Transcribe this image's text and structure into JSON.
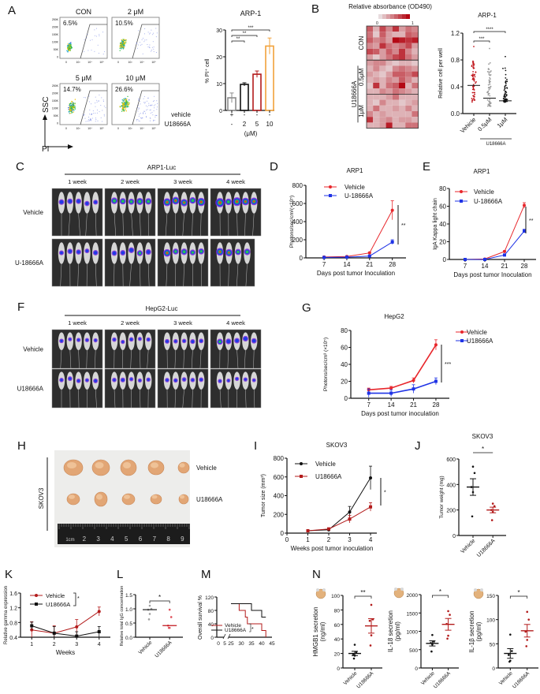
{
  "panels": {
    "A": "A",
    "B": "B",
    "C": "C",
    "D": "D",
    "E": "E",
    "F": "F",
    "G": "G",
    "H": "H",
    "I": "I",
    "J": "J",
    "K": "K",
    "L": "L",
    "M": "M",
    "N": "N"
  },
  "colors": {
    "red": "#e8262b",
    "blue": "#1f33e6",
    "darkred": "#b31b1b",
    "orange": "#f2a23a",
    "grey": "#8c8c8c",
    "black": "#111111"
  },
  "panelA": {
    "flow": {
      "plots": [
        {
          "title": "CON",
          "percent": "6.5%"
        },
        {
          "title": "2 μM",
          "percent": "10.5%"
        },
        {
          "title": "5 μM",
          "percent": "14.7%"
        },
        {
          "title": "10 μM",
          "percent": "26.6%"
        }
      ],
      "y_ticks": [
        "250K",
        "200K",
        "150K",
        "100K",
        "50K",
        "0"
      ],
      "x_ticks": [
        "0",
        "10³",
        "10⁴",
        "10⁵"
      ],
      "y_axis": "SSC",
      "x_axis": "PI"
    },
    "rows": {
      "vehicle_label": "vehicle",
      "drug_label": "U18666A",
      "unit": "(μM)"
    }
  },
  "chart_data": [
    {
      "id": "A-bar",
      "type": "bar",
      "title": "ARP-1",
      "ylabel": "% PI⁺ cell",
      "ylim": [
        0,
        30
      ],
      "yticks": [
        "0",
        "10",
        "20",
        "30"
      ],
      "categories": [
        "vehicle",
        "2",
        "5",
        "10"
      ],
      "vehicle_row": [
        "+",
        "-",
        "-",
        "-"
      ],
      "drug_row": [
        "-",
        "2",
        "5",
        "10"
      ],
      "values": [
        4.7,
        9.7,
        13.5,
        24.0
      ],
      "errors": [
        1.8,
        0.6,
        1.2,
        3.0
      ],
      "significance": [
        {
          "from": 0,
          "to": 1,
          "label": "**"
        },
        {
          "from": 0,
          "to": 2,
          "label": "**"
        },
        {
          "from": 0,
          "to": 3,
          "label": "***"
        }
      ]
    },
    {
      "id": "B-heatmap",
      "type": "heatmap",
      "title": "Relative absorbance (OD490)",
      "scale_min": "0",
      "scale_max": "1",
      "row_groups": [
        "CON",
        "0.5μM",
        "1μM"
      ],
      "group_label": "U18666A",
      "values": [
        [
          0.6,
          0.2,
          0.7,
          0.4,
          0.8,
          0.3,
          0.5,
          0.4
        ],
        [
          0.5,
          0.1,
          0.6,
          0.3,
          0.2,
          0.2,
          0.6,
          0.5
        ],
        [
          0.6,
          0.4,
          0.5,
          0.3,
          1.0,
          0.9,
          0.8,
          0.9
        ],
        [
          0.4,
          0.3,
          0.8,
          0.5,
          0.4,
          0.5,
          0.7,
          0.3
        ],
        [
          0.7,
          0.6,
          0.3,
          0.6,
          0.4,
          0.8,
          0.4,
          0.2
        ],
        [
          0.3,
          0.1,
          0.3,
          0.5,
          0.7,
          0.8,
          0.5,
          0.3
        ],
        [
          0.3,
          0.4,
          0.4,
          0.2,
          0.1,
          0.2,
          0.2,
          0.1
        ],
        [
          0.2,
          0.4,
          0.2,
          0.1,
          0.4,
          0.5,
          0.4,
          0.3
        ],
        [
          0.3,
          0.2,
          0.1,
          0.3,
          0.6,
          0.6,
          0.5,
          0.7
        ],
        [
          0.2,
          0.3,
          0.2,
          0.4,
          0.3,
          0.6,
          0.4,
          0.2
        ],
        [
          0.1,
          0.8,
          0.2,
          0.5,
          0.6,
          1.0,
          0.2,
          0.5
        ],
        [
          0.2,
          0.2,
          0.4,
          0.3,
          0.5,
          0.4,
          0.3,
          0.2
        ],
        [
          0.2,
          0.2,
          0.2,
          0.3,
          0.5,
          0.2,
          0.2,
          0.2
        ],
        [
          0.2,
          0.1,
          0.4,
          0.2,
          0.2,
          0.1,
          0.2,
          0.3
        ],
        [
          0.2,
          0.5,
          0.2,
          0.2,
          0.3,
          0.2,
          0.4,
          0.2
        ],
        [
          0.4,
          0.2,
          0.3,
          0.2,
          0.2,
          0.2,
          0.2,
          0.5
        ],
        [
          0.8,
          0.2,
          0.3,
          0.4,
          0.2,
          0.3,
          0.3,
          0.2
        ],
        [
          0.2,
          0.2,
          0.3,
          0.9,
          0.2,
          0.2,
          0.5,
          0.5
        ]
      ]
    },
    {
      "id": "B-scatter",
      "type": "scatter",
      "title": "ARP-1",
      "ylabel": "Relative cell per well",
      "ylim": [
        0,
        1.2
      ],
      "yticks": [
        "0.0",
        "0.4",
        "0.8",
        "1.2"
      ],
      "categories": [
        "Vehicle",
        "0.5μM",
        "1μM"
      ],
      "group_label": "U18666A",
      "medians": [
        0.42,
        0.23,
        0.19
      ],
      "spread_max": [
        1.0,
        0.97,
        0.85
      ],
      "spread_min": [
        0.17,
        0.11,
        0.17
      ],
      "colors": [
        "#c0151b",
        "#9a9a9a",
        "#111111"
      ],
      "significance": [
        {
          "from": 0,
          "to": 1,
          "label": "***"
        },
        {
          "from": 0,
          "to": 2,
          "label": "****"
        }
      ]
    },
    {
      "id": "D-line",
      "type": "line",
      "title": "ARP1",
      "xlabel": "Days post tumor Inoculation",
      "ylabel": "Photons/sec/cm²(×10⁵)",
      "x": [
        7,
        14,
        21,
        28
      ],
      "ylim": [
        0,
        800
      ],
      "yticks": [
        "0",
        "200",
        "400",
        "600",
        "800"
      ],
      "series": [
        {
          "name": "Vehicle",
          "values": [
            10,
            15,
            55,
            525
          ],
          "errors": [
            4,
            4,
            8,
            105
          ]
        },
        {
          "name": "U-18666A",
          "values": [
            5,
            8,
            20,
            175
          ],
          "errors": [
            3,
            3,
            6,
            25
          ]
        }
      ],
      "significance": "**"
    },
    {
      "id": "E-line",
      "type": "line",
      "title": "ARP1",
      "xlabel": "Days post tumor Inoculation",
      "ylabel": "IgA Kappa light chain",
      "x": [
        7,
        14,
        21,
        28
      ],
      "ylim": [
        0,
        80
      ],
      "yticks": [
        "0",
        "20",
        "40",
        "60",
        "80"
      ],
      "series": [
        {
          "name": "Vehicle",
          "values": [
            0,
            0.5,
            9,
            61
          ],
          "errors": [
            0.5,
            0.5,
            1,
            3
          ]
        },
        {
          "name": "U-18666A",
          "values": [
            0,
            0,
            5,
            32
          ],
          "errors": [
            0.5,
            0.5,
            1,
            2
          ]
        }
      ],
      "significance": "**"
    },
    {
      "id": "G-line",
      "type": "line",
      "title": "HepG2",
      "xlabel": "Days post tumor inoculation",
      "ylabel": "Photons/sec/cm³ (×10⁵)",
      "x": [
        7,
        14,
        21,
        28
      ],
      "ylim": [
        0,
        80
      ],
      "yticks": [
        "0",
        "20",
        "40",
        "60",
        "80"
      ],
      "series": [
        {
          "name": "Vehicle",
          "values": [
            10,
            12,
            21,
            63
          ],
          "errors": [
            2,
            2,
            3,
            6
          ]
        },
        {
          "name": "U18666A",
          "values": [
            6,
            6,
            11,
            20
          ],
          "errors": [
            5,
            4,
            5,
            4
          ]
        }
      ],
      "significance": "***"
    },
    {
      "id": "I-line",
      "type": "line",
      "title": "SKOV3",
      "xlabel": "Weeks post tumor inoculation",
      "ylabel": "Tumor size (mm³)",
      "x": [
        1,
        2,
        3,
        4
      ],
      "xlim": [
        0,
        4
      ],
      "xticks": [
        "0",
        "1",
        "2",
        "3",
        "4"
      ],
      "ylim": [
        0,
        800
      ],
      "yticks": [
        "0",
        "200",
        "400",
        "600",
        "800"
      ],
      "series": [
        {
          "name": "Vehicle",
          "values": [
            25,
            35,
            225,
            590
          ],
          "errors": [
            5,
            8,
            60,
            125
          ]
        },
        {
          "name": "U18666A",
          "values": [
            25,
            45,
            150,
            280
          ],
          "errors": [
            5,
            10,
            40,
            45
          ]
        }
      ],
      "significance": "*"
    },
    {
      "id": "J-dot",
      "type": "scatter",
      "title": "SKOV3",
      "ylabel": "Tumor weight (mg)",
      "ylim": [
        0,
        600
      ],
      "yticks": [
        "0",
        "200",
        "400",
        "600"
      ],
      "categories": [
        "Vehicle",
        "U18666A"
      ],
      "points": [
        [
          540,
          490,
          380,
          340,
          150
        ],
        [
          250,
          230,
          200,
          185,
          120
        ]
      ],
      "means": [
        380,
        200
      ],
      "sem": [
        65,
        22
      ],
      "significance": "*"
    },
    {
      "id": "K-line",
      "type": "line",
      "xlabel": "Weeks",
      "ylabel": "Relative gamma expression",
      "x": [
        1,
        2,
        3,
        4
      ],
      "ylim": [
        0.4,
        1.6
      ],
      "yticks": [
        "0.4",
        "0.8",
        "1.2",
        "1.6"
      ],
      "series": [
        {
          "name": "Vehicle",
          "values": [
            0.6,
            0.51,
            0.68,
            1.1
          ],
          "errors": [
            0.22,
            0.2,
            0.2,
            0.12
          ]
        },
        {
          "name": "U18666A",
          "values": [
            0.71,
            0.51,
            0.43,
            0.55
          ],
          "errors": [
            0.1,
            0.18,
            0.12,
            0.14
          ]
        }
      ],
      "significance": "*"
    },
    {
      "id": "L-dot",
      "type": "scatter",
      "ylabel": "Relative total IgG concentration",
      "ylim": [
        0,
        1.5
      ],
      "yticks": [
        "0.0",
        "0.5",
        "1.0",
        "1.5"
      ],
      "categories": [
        "Vehicle",
        "U18666A"
      ],
      "points": [
        [
          1.11,
          1.0,
          0.97,
          0.82,
          0.63
        ],
        [
          0.97,
          0.71,
          0.41,
          0.33,
          0.33
        ]
      ],
      "medians": [
        0.97,
        0.41
      ],
      "colors": [
        "#a0a0a0",
        "#e0505a"
      ],
      "significance": "*"
    },
    {
      "id": "M-survival",
      "type": "line",
      "ylabel": "Overall survival %",
      "xticks": [
        "0",
        "5",
        "25",
        "30",
        "35",
        "40",
        "45"
      ],
      "ylim": [
        0,
        120
      ],
      "yticks": [
        "0",
        "40",
        "80",
        "120"
      ],
      "series": [
        {
          "name": "Vehicle",
          "steps": [
            [
              0,
              100
            ],
            [
              29,
              100
            ],
            [
              29,
              80
            ],
            [
              32,
              80
            ],
            [
              32,
              60
            ],
            [
              33,
              60
            ],
            [
              33,
              40
            ],
            [
              40,
              40
            ],
            [
              40,
              20
            ],
            [
              42,
              20
            ],
            [
              42,
              0
            ]
          ]
        },
        {
          "name": "U18666A",
          "steps": [
            [
              0,
              100
            ],
            [
              35,
              100
            ],
            [
              35,
              80
            ],
            [
              40,
              80
            ],
            [
              40,
              60
            ],
            [
              42,
              60
            ]
          ]
        }
      ],
      "significance": "*"
    },
    {
      "id": "N1-dot",
      "type": "scatter",
      "ylabel": "HMGB1 secretion (ng/ml)",
      "ylabel_line1": "HMGB1 secretion",
      "ylabel_line2": "(ng/ml)",
      "ylim": [
        0,
        100
      ],
      "yticks": [
        "0",
        "20",
        "40",
        "60",
        "80",
        "100"
      ],
      "categories": [
        "Vehicle",
        "U18666A"
      ],
      "points": [
        [
          32,
          22,
          19,
          17,
          13
        ],
        [
          87,
          67,
          65,
          45,
          31
        ]
      ],
      "means": [
        20,
        58
      ],
      "sem": [
        3,
        10
      ],
      "significance": "**"
    },
    {
      "id": "N2-dot",
      "type": "scatter",
      "ylabel": "IL-18 secretion (pg/ml)",
      "ylabel_line1": "IL-18 secretion",
      "ylabel_line2": "(pg/ml)",
      "ylim": [
        0,
        2000
      ],
      "yticks": [
        "0",
        "500",
        "1000",
        "1500",
        "2000"
      ],
      "categories": [
        "Vehicle",
        "U18666A"
      ],
      "points": [
        [
          900,
          720,
          680,
          640,
          450
        ],
        [
          1550,
          1450,
          1200,
          880,
          800
        ]
      ],
      "means": [
        670,
        1190
      ],
      "sem": [
        70,
        160
      ],
      "significance": "*"
    },
    {
      "id": "N3-dot",
      "type": "scatter",
      "ylabel": "IL-1β secretion (pg/ml)",
      "ylabel_line1": "IL-1β secretion",
      "ylabel_line2": "(pg/ml)",
      "ylim": [
        0,
        150
      ],
      "yticks": [
        "0",
        "50",
        "100",
        "150"
      ],
      "categories": [
        "Vehicle",
        "U18666A"
      ],
      "points": [
        [
          69,
          35,
          27,
          15,
          13
        ],
        [
          116,
          100,
          75,
          58,
          45
        ]
      ],
      "means": [
        30,
        77
      ],
      "sem": [
        10,
        13
      ],
      "significance": "*"
    }
  ],
  "panelC": {
    "title": "ARP1-Luc",
    "weeks": [
      "1 week",
      "2 week",
      "3 week",
      "4 week"
    ],
    "rows": [
      "Vehicle",
      "U-18666A"
    ]
  },
  "panelF": {
    "title": "HepG2-Luc",
    "weeks": [
      "1 week",
      "2 week",
      "3 week",
      "4 week"
    ],
    "rows": [
      "Vehicle",
      "U18666A"
    ]
  },
  "panelH": {
    "side_label": "SKOV3",
    "rows": [
      "Vehicle",
      "U18666A"
    ],
    "ruler": [
      "1cm",
      "2",
      "3",
      "4",
      "5",
      "6",
      "7",
      "8",
      "9"
    ]
  }
}
